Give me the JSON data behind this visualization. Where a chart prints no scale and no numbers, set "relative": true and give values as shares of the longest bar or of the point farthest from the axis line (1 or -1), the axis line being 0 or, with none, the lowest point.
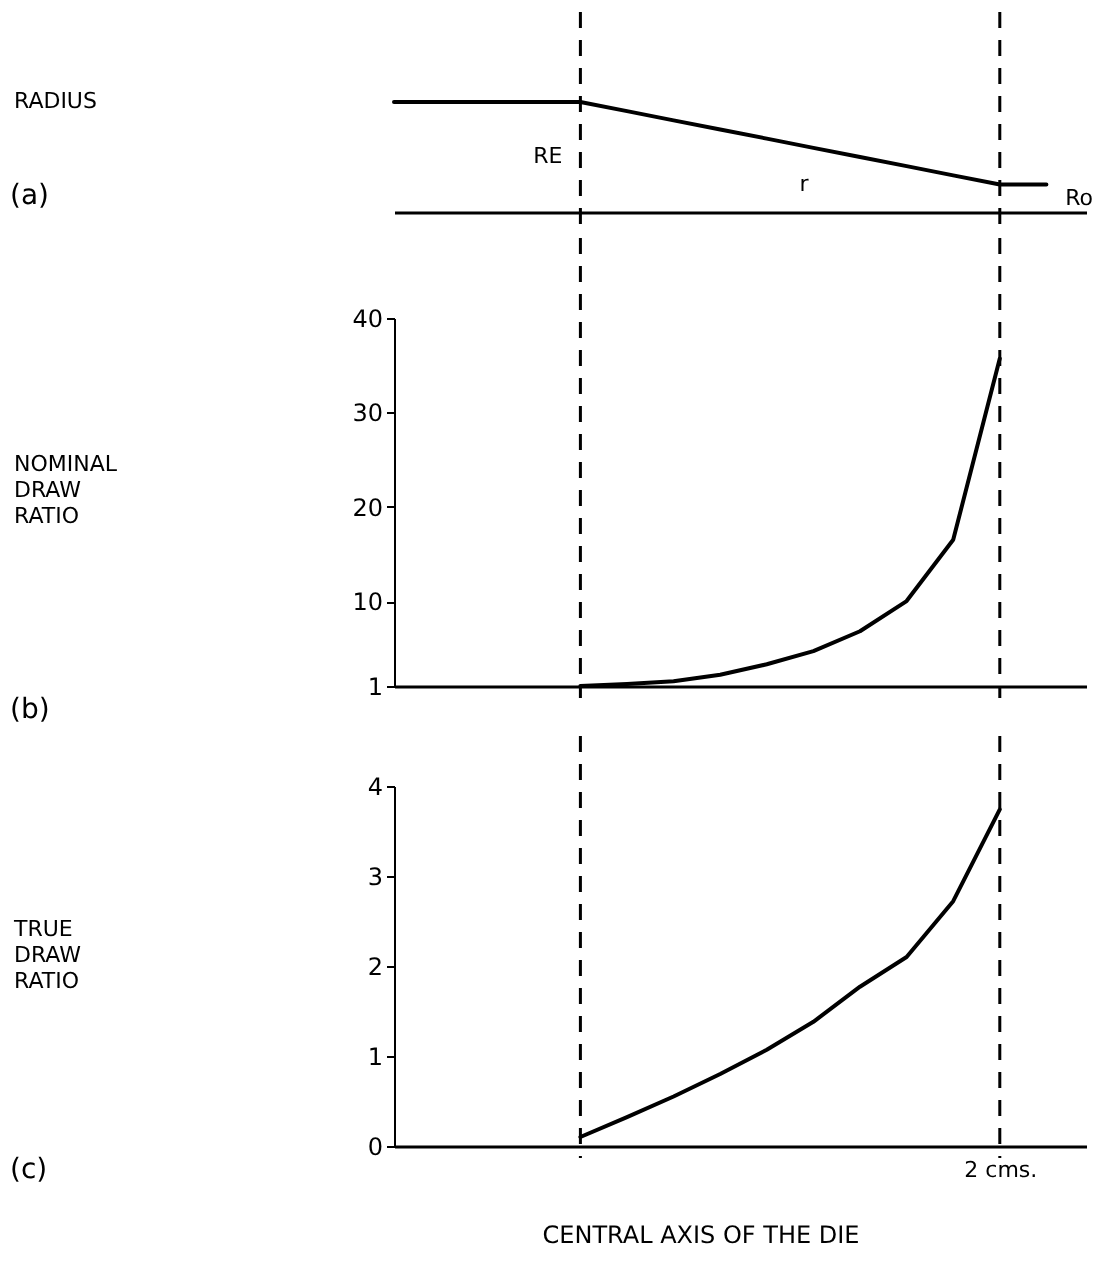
{
  "chart_data": [
    {
      "type": "line",
      "relative": true,
      "ylabel": "RADIUS",
      "categories": [
        null,
        null,
        null,
        null,
        null,
        null,
        null,
        null,
        null,
        null,
        null,
        null,
        null,
        null,
        null
      ],
      "tick_labels": false,
      "series": [
        {
          "color": "#000000",
          "values": [
            1,
            1,
            1,
            1,
            1,
            0.917,
            0.833,
            0.75,
            0.667,
            0.583,
            0.5,
            0.417,
            0.333,
            0.25,
            0.25
          ]
        }
      ],
      "annotations": [
        "(a)",
        "RE",
        "r",
        "Ro"
      ]
    },
    {
      "type": "line",
      "ylabel": "NOMINAL DRAW RATIO",
      "categories": [
        null,
        null,
        null,
        null,
        null,
        null,
        null,
        null,
        null,
        null
      ],
      "ylim": [
        1,
        40
      ],
      "yticks": [
        1,
        10,
        20,
        30,
        40
      ],
      "tick_labels": "y",
      "series": [
        {
          "color": "#000000",
          "values": [
            1,
            1.2,
            1.5,
            2.2,
            3.3,
            4.7,
            6.8,
            10,
            16.5,
            35.7
          ]
        }
      ],
      "annotations": [
        "(b)"
      ]
    },
    {
      "type": "line",
      "ylabel": "TRUE DRAW RATIO",
      "xlabel": "CENTRAL AXIS OF THE DIE",
      "categories": [
        null,
        null,
        null,
        null,
        null,
        null,
        null,
        null,
        null,
        "2 cms."
      ],
      "ylim": [
        0,
        4
      ],
      "yticks": [
        0,
        1,
        2,
        3,
        4
      ],
      "series": [
        {
          "color": "#000000",
          "values": [
            0.1,
            0.32,
            0.55,
            0.8,
            1.07,
            1.38,
            1.77,
            2.1,
            2.72,
            3.74
          ]
        }
      ],
      "annotations": [
        "(c)"
      ]
    }
  ]
}
